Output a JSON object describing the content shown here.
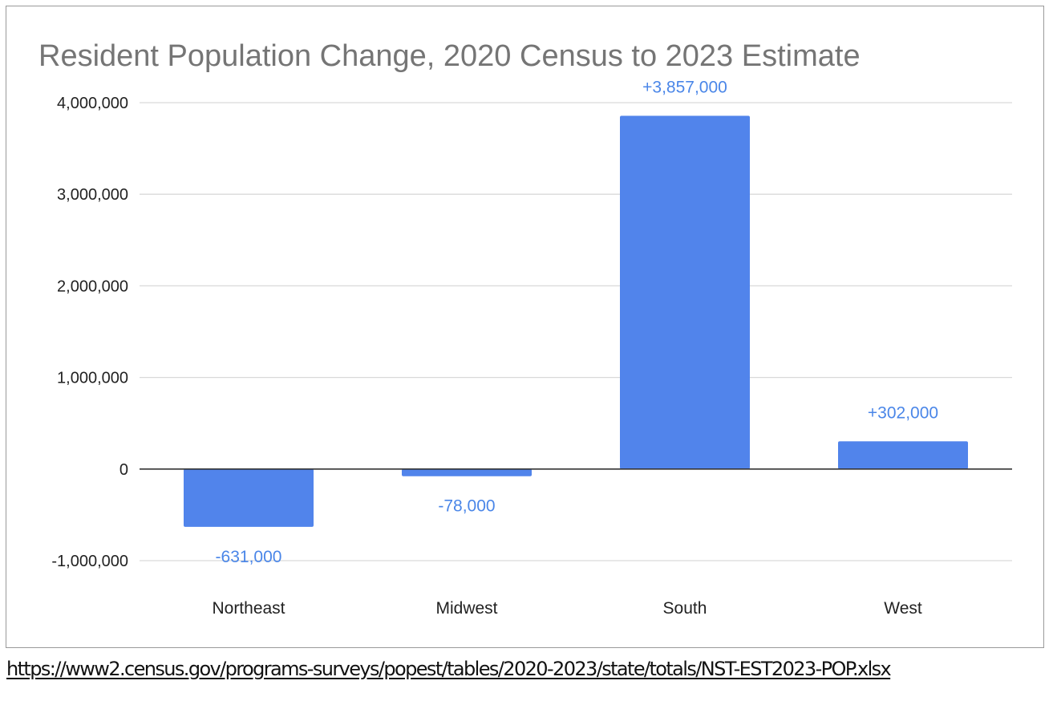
{
  "chart_data": {
    "type": "bar",
    "title": "Resident Population Change, 2020 Census to 2023 Estimate",
    "xlabel": "",
    "ylabel": "",
    "categories": [
      "Northeast",
      "Midwest",
      "South",
      "West"
    ],
    "values": [
      -631000,
      -78000,
      3857000,
      302000
    ],
    "data_labels": [
      "-631,000",
      "-78,000",
      "+3,857,000",
      "+302,000"
    ],
    "ylim": [
      -1000000,
      4000000
    ],
    "yticks": [
      -1000000,
      0,
      1000000,
      2000000,
      3000000,
      4000000
    ],
    "ytick_labels": [
      "-1,000,000",
      "0",
      "1,000,000",
      "2,000,000",
      "3,000,000",
      "4,000,000"
    ],
    "grid": true,
    "legend": "none",
    "colors": {
      "bar": "#5184eb",
      "data_label": "#4a86e8",
      "gridline": "#d9d9d9",
      "zero_line": "#333333",
      "title": "#757575"
    }
  },
  "source": {
    "url": "https://www2.census.gov/programs-surveys/popest/tables/2020-2023/state/totals/NST-EST2023-POP.xlsx"
  }
}
